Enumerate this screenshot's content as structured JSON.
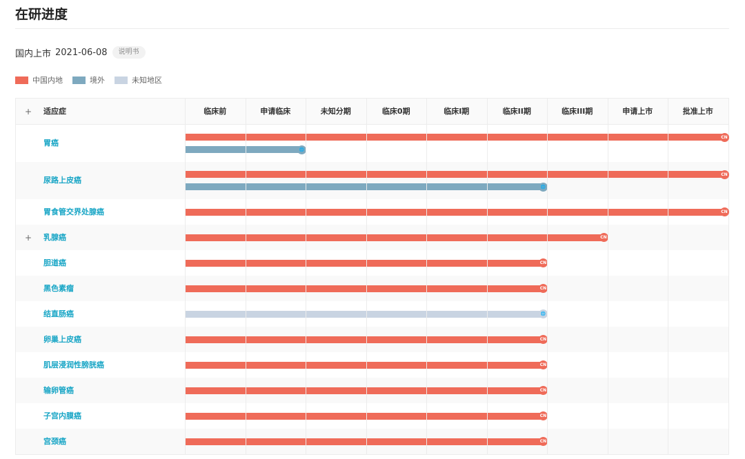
{
  "page": {
    "title": "在研进度"
  },
  "launch": {
    "label": "国内上市",
    "date": "2021-06-08",
    "doc_link": "说明书"
  },
  "legend": [
    {
      "label": "中国内地",
      "color": "#ef6b59"
    },
    {
      "label": "境外",
      "color": "#7ea9bf"
    },
    {
      "label": "未知地区",
      "color": "#c9d4e2"
    }
  ],
  "table": {
    "indication_header": "适应症",
    "expand_symbol": "+",
    "phases": [
      "临床前",
      "申请临床",
      "未知分期",
      "临床0期",
      "临床I期",
      "临床II期",
      "临床III期",
      "申请上市",
      "批准上市"
    ],
    "badges": {
      "cn": "CN",
      "global": "🌐"
    },
    "rows": [
      {
        "name": "胃癌",
        "expandable": false,
        "bars": [
          {
            "region": "中国内地",
            "phase": "批准上市"
          },
          {
            "region": "境外",
            "phase": "申请临床"
          }
        ]
      },
      {
        "name": "尿路上皮癌",
        "expandable": false,
        "bars": [
          {
            "region": "中国内地",
            "phase": "批准上市"
          },
          {
            "region": "境外",
            "phase": "临床II期"
          }
        ]
      },
      {
        "name": "胃食管交界处腺癌",
        "expandable": false,
        "bars": [
          {
            "region": "中国内地",
            "phase": "批准上市"
          }
        ]
      },
      {
        "name": "乳腺癌",
        "expandable": true,
        "bars": [
          {
            "region": "中国内地",
            "phase": "临床III期"
          }
        ]
      },
      {
        "name": "胆道癌",
        "expandable": false,
        "bars": [
          {
            "region": "中国内地",
            "phase": "临床II期"
          }
        ]
      },
      {
        "name": "黑色素瘤",
        "expandable": false,
        "bars": [
          {
            "region": "中国内地",
            "phase": "临床II期"
          }
        ]
      },
      {
        "name": "结直肠癌",
        "expandable": false,
        "bars": [
          {
            "region": "未知地区",
            "phase": "临床II期"
          }
        ]
      },
      {
        "name": "卵巢上皮癌",
        "expandable": false,
        "bars": [
          {
            "region": "中国内地",
            "phase": "临床II期"
          }
        ]
      },
      {
        "name": "肌层浸润性膀胱癌",
        "expandable": false,
        "bars": [
          {
            "region": "中国内地",
            "phase": "临床II期"
          }
        ]
      },
      {
        "name": "输卵管癌",
        "expandable": false,
        "bars": [
          {
            "region": "中国内地",
            "phase": "临床II期"
          }
        ]
      },
      {
        "name": "子宫内膜癌",
        "expandable": false,
        "bars": [
          {
            "region": "中国内地",
            "phase": "临床II期"
          }
        ]
      },
      {
        "name": "宫颈癌",
        "expandable": false,
        "bars": [
          {
            "region": "中国内地",
            "phase": "临床II期"
          }
        ]
      }
    ]
  }
}
